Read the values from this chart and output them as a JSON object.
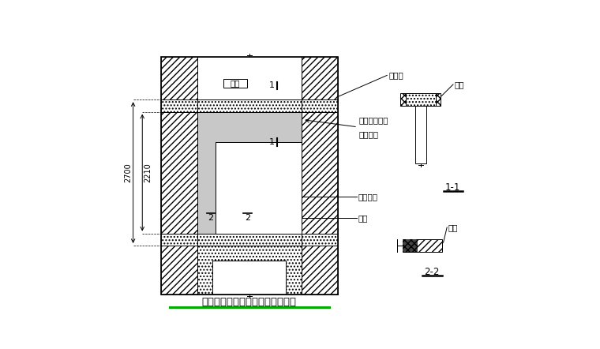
{
  "title": "原剪力墙新开洞口重浇混凝土加固",
  "bg_color": "#ffffff",
  "line_color": "#000000",
  "dim_2700": "2700",
  "dim_2210": "2210",
  "label_lianl_main": "连梁",
  "label_yuanlb": "原楼板",
  "label_yuanq1": "原墙局部拆除",
  "label_yuanq2": "重新浇筑",
  "label_xinkdq": "新开洞口",
  "label_anz_main": "暗柱",
  "label_lianl_side": "连梁",
  "label_anz_side": "暗柱",
  "label_11": "1-1",
  "label_22": "2-2",
  "green_color": "#00aa00",
  "gray_color": "#c8c8c8"
}
